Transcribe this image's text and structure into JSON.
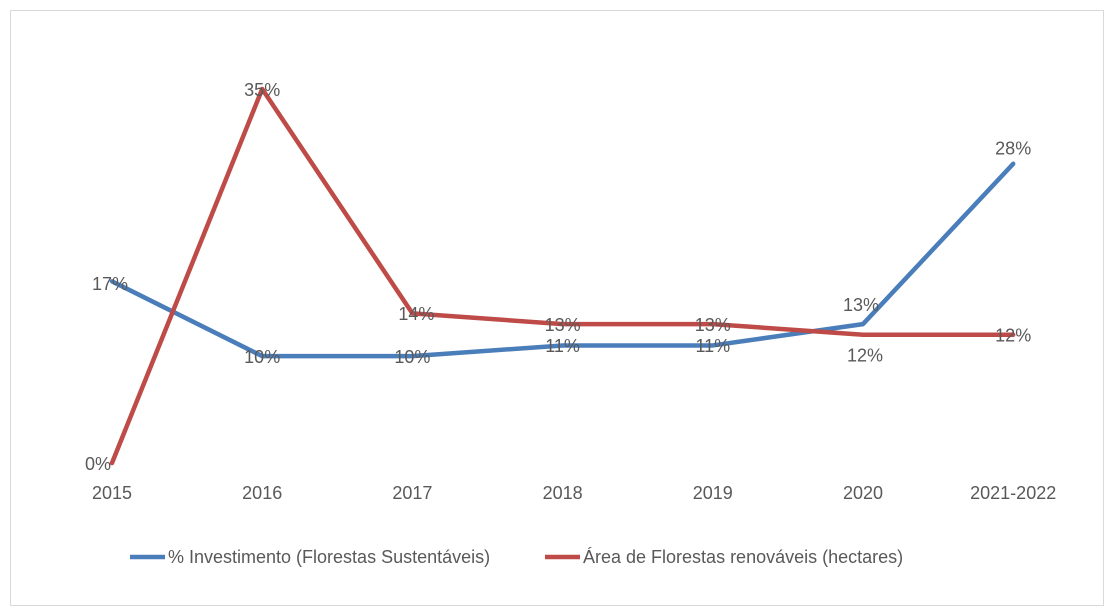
{
  "chart_data": {
    "type": "line",
    "categories": [
      "2015",
      "2016",
      "2017",
      "2018",
      "2019",
      "2020",
      "2021-2022"
    ],
    "series": [
      {
        "name": "% Investimento (Florestas Sustentáveis)",
        "color": "#4a7ebb",
        "values": [
          17,
          10,
          10,
          11,
          11,
          13,
          28
        ],
        "value_labels": [
          "17%",
          "10%",
          "10%",
          "11%",
          "11%",
          "13%",
          "28%"
        ]
      },
      {
        "name": "Área de Florestas renováveis (hectares)",
        "color": "#be4b48",
        "values": [
          0,
          35,
          14,
          13,
          13,
          12,
          12
        ],
        "value_labels": [
          "0%",
          "35%",
          "14%",
          "13%",
          "13%",
          "12%",
          "12%"
        ]
      }
    ],
    "legend": "bottom"
  }
}
